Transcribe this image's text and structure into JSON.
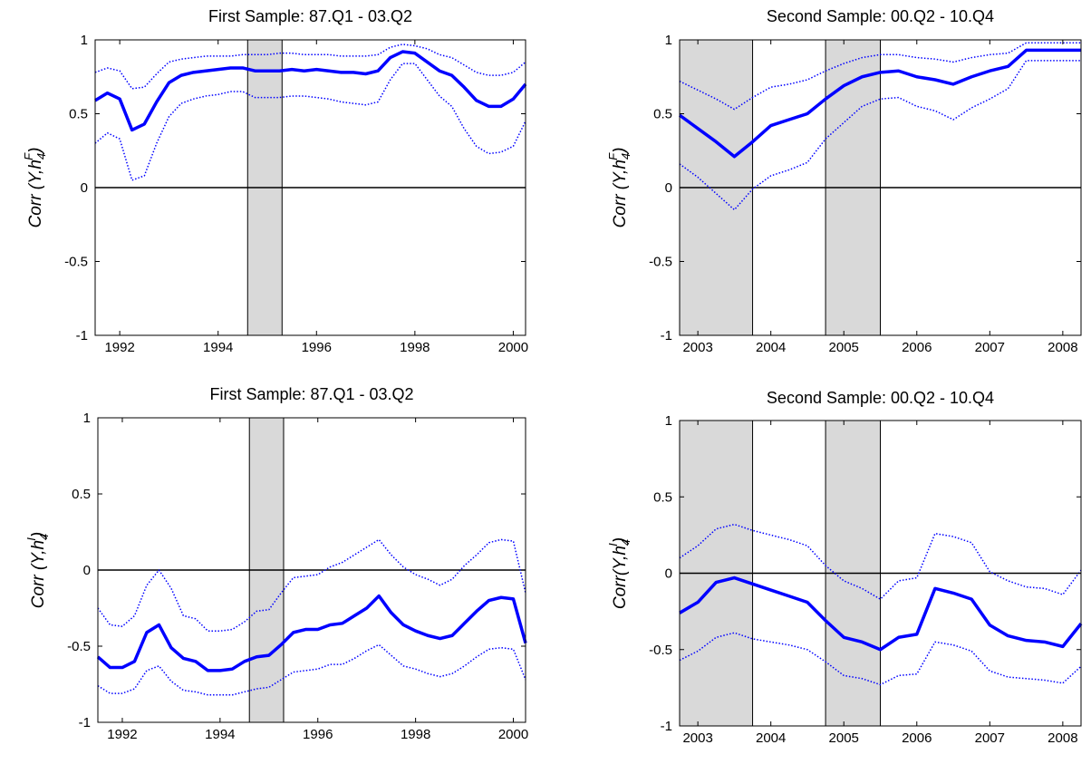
{
  "chart_data": [
    {
      "type": "line",
      "title": "First Sample: 87.Q1 - 03.Q2",
      "ylabel": [
        "Corr (Y,h",
        "4",
        "F",
        ")"
      ],
      "x": [
        1991.5,
        1991.75,
        1992,
        1992.25,
        1992.5,
        1992.75,
        1993,
        1993.25,
        1993.5,
        1993.75,
        1994,
        1994.25,
        1994.5,
        1994.75,
        1995,
        1995.25,
        1995.5,
        1995.75,
        1996,
        1996.25,
        1996.5,
        1996.75,
        1997,
        1997.25,
        1997.5,
        1997.75,
        1998,
        1998.25,
        1998.5,
        1998.75,
        1999,
        1999.25,
        1999.5,
        1999.75,
        2000,
        2000.25
      ],
      "series": [
        {
          "color": "#0000ff",
          "style": "solid",
          "values": [
            0.59,
            0.64,
            0.6,
            0.39,
            0.43,
            0.58,
            0.71,
            0.76,
            0.78,
            0.79,
            0.8,
            0.81,
            0.81,
            0.79,
            0.79,
            0.79,
            0.8,
            0.79,
            0.8,
            0.79,
            0.78,
            0.78,
            0.77,
            0.79,
            0.88,
            0.92,
            0.91,
            0.85,
            0.79,
            0.76,
            0.68,
            0.59,
            0.55,
            0.55,
            0.6,
            0.7
          ]
        },
        {
          "color": "#0000ff",
          "style": "dotted",
          "values": [
            0.78,
            0.81,
            0.79,
            0.67,
            0.68,
            0.77,
            0.85,
            0.87,
            0.88,
            0.89,
            0.89,
            0.89,
            0.9,
            0.9,
            0.9,
            0.91,
            0.91,
            0.9,
            0.9,
            0.9,
            0.89,
            0.89,
            0.89,
            0.9,
            0.95,
            0.97,
            0.96,
            0.94,
            0.9,
            0.88,
            0.83,
            0.78,
            0.76,
            0.76,
            0.78,
            0.85
          ]
        },
        {
          "color": "#0000ff",
          "style": "dotted",
          "values": [
            0.3,
            0.37,
            0.33,
            0.05,
            0.08,
            0.3,
            0.48,
            0.57,
            0.6,
            0.62,
            0.63,
            0.65,
            0.65,
            0.61,
            0.61,
            0.61,
            0.62,
            0.62,
            0.61,
            0.6,
            0.58,
            0.57,
            0.56,
            0.58,
            0.73,
            0.84,
            0.84,
            0.73,
            0.62,
            0.55,
            0.4,
            0.28,
            0.23,
            0.24,
            0.28,
            0.45
          ]
        }
      ],
      "shaded": [
        [
          1994.6,
          1995.3
        ]
      ],
      "reference_line": 0,
      "xlim": [
        1991.5,
        2000.25
      ],
      "xticks": [
        1992,
        1994,
        1996,
        1998,
        2000
      ],
      "ylim": [
        -1,
        1
      ],
      "yticks": [
        -1,
        -0.5,
        0,
        0.5,
        1
      ]
    },
    {
      "type": "line",
      "title": "Second Sample: 00.Q2 - 10.Q4",
      "ylabel": [
        "Corr (Y,h",
        "4",
        "F",
        ")"
      ],
      "x": [
        2002.75,
        2003,
        2003.25,
        2003.5,
        2003.75,
        2004,
        2004.25,
        2004.5,
        2004.75,
        2005,
        2005.25,
        2005.5,
        2005.75,
        2006,
        2006.25,
        2006.5,
        2006.75,
        2007,
        2007.25,
        2007.5,
        2007.75,
        2008,
        2008.25
      ],
      "series": [
        {
          "color": "#0000ff",
          "style": "solid",
          "values": [
            0.49,
            0.4,
            0.31,
            0.21,
            0.31,
            0.42,
            0.46,
            0.5,
            0.6,
            0.69,
            0.75,
            0.78,
            0.79,
            0.75,
            0.73,
            0.7,
            0.75,
            0.79,
            0.82,
            0.93,
            0.93,
            0.93,
            0.93
          ]
        },
        {
          "color": "#0000ff",
          "style": "dotted",
          "values": [
            0.72,
            0.66,
            0.6,
            0.53,
            0.61,
            0.68,
            0.7,
            0.73,
            0.79,
            0.84,
            0.88,
            0.9,
            0.9,
            0.88,
            0.87,
            0.85,
            0.88,
            0.9,
            0.91,
            0.98,
            0.98,
            0.98,
            0.98
          ]
        },
        {
          "color": "#0000ff",
          "style": "dotted",
          "values": [
            0.16,
            0.07,
            -0.04,
            -0.15,
            -0.01,
            0.08,
            0.12,
            0.17,
            0.33,
            0.44,
            0.55,
            0.6,
            0.61,
            0.55,
            0.52,
            0.46,
            0.54,
            0.6,
            0.67,
            0.86,
            0.86,
            0.86,
            0.86
          ]
        }
      ],
      "shaded": [
        [
          2002.75,
          2003.75
        ],
        [
          2004.75,
          2005.5
        ]
      ],
      "reference_line": 0,
      "xlim": [
        2002.75,
        2008.25
      ],
      "xticks": [
        2003,
        2004,
        2005,
        2006,
        2007,
        2008
      ],
      "ylim": [
        -1,
        1
      ],
      "yticks": [
        -1,
        -0.5,
        0,
        0.5,
        1
      ]
    },
    {
      "type": "line",
      "title": "First Sample: 87.Q1 - 03.Q2",
      "ylabel": [
        "Corr (Y,h",
        "4",
        "I",
        ")"
      ],
      "x": [
        1991.5,
        1991.75,
        1992,
        1992.25,
        1992.5,
        1992.75,
        1993,
        1993.25,
        1993.5,
        1993.75,
        1994,
        1994.25,
        1994.5,
        1994.75,
        1995,
        1995.25,
        1995.5,
        1995.75,
        1996,
        1996.25,
        1996.5,
        1996.75,
        1997,
        1997.25,
        1997.5,
        1997.75,
        1998,
        1998.25,
        1998.5,
        1998.75,
        1999,
        1999.25,
        1999.5,
        1999.75,
        2000,
        2000.25
      ],
      "series": [
        {
          "color": "#0000ff",
          "style": "solid",
          "values": [
            -0.57,
            -0.64,
            -0.64,
            -0.6,
            -0.41,
            -0.36,
            -0.51,
            -0.58,
            -0.6,
            -0.66,
            -0.66,
            -0.65,
            -0.6,
            -0.57,
            -0.56,
            -0.49,
            -0.41,
            -0.39,
            -0.39,
            -0.36,
            -0.35,
            -0.3,
            -0.25,
            -0.17,
            -0.28,
            -0.36,
            -0.4,
            -0.43,
            -0.45,
            -0.43,
            -0.35,
            -0.27,
            -0.2,
            -0.18,
            -0.19,
            -0.48
          ]
        },
        {
          "color": "#0000ff",
          "style": "dotted",
          "values": [
            -0.25,
            -0.36,
            -0.37,
            -0.3,
            -0.1,
            0,
            -0.12,
            -0.3,
            -0.32,
            -0.4,
            -0.4,
            -0.39,
            -0.34,
            -0.27,
            -0.26,
            -0.15,
            -0.05,
            -0.04,
            -0.03,
            0.02,
            0.05,
            0.1,
            0.15,
            0.2,
            0.1,
            0.02,
            -0.03,
            -0.06,
            -0.1,
            -0.06,
            0.03,
            0.1,
            0.18,
            0.2,
            0.19,
            -0.15
          ]
        },
        {
          "color": "#0000ff",
          "style": "dotted",
          "values": [
            -0.76,
            -0.81,
            -0.81,
            -0.78,
            -0.66,
            -0.63,
            -0.73,
            -0.79,
            -0.8,
            -0.82,
            -0.82,
            -0.82,
            -0.8,
            -0.78,
            -0.77,
            -0.72,
            -0.67,
            -0.66,
            -0.65,
            -0.62,
            -0.62,
            -0.58,
            -0.53,
            -0.49,
            -0.56,
            -0.63,
            -0.65,
            -0.68,
            -0.7,
            -0.68,
            -0.63,
            -0.57,
            -0.52,
            -0.51,
            -0.52,
            -0.72
          ]
        }
      ],
      "shaded": [
        [
          1994.6,
          1995.3
        ]
      ],
      "reference_line": 0,
      "xlim": [
        1991.5,
        2000.25
      ],
      "xticks": [
        1992,
        1994,
        1996,
        1998,
        2000
      ],
      "ylim": [
        -1,
        1
      ],
      "yticks": [
        -1,
        -0.5,
        0,
        0.5,
        1
      ]
    },
    {
      "type": "line",
      "title": "Second Sample: 00.Q2 - 10.Q4",
      "ylabel": [
        "Corr(Y,h",
        "4",
        "I",
        ")"
      ],
      "x": [
        2002.75,
        2003,
        2003.25,
        2003.5,
        2003.75,
        2004,
        2004.25,
        2004.5,
        2004.75,
        2005,
        2005.25,
        2005.5,
        2005.75,
        2006,
        2006.25,
        2006.5,
        2006.75,
        2007,
        2007.25,
        2007.5,
        2007.75,
        2008,
        2008.25
      ],
      "series": [
        {
          "color": "#0000ff",
          "style": "solid",
          "values": [
            -0.26,
            -0.19,
            -0.06,
            -0.03,
            -0.07,
            -0.11,
            -0.15,
            -0.19,
            -0.31,
            -0.42,
            -0.45,
            -0.5,
            -0.42,
            -0.4,
            -0.1,
            -0.13,
            -0.17,
            -0.34,
            -0.41,
            -0.44,
            -0.45,
            -0.48,
            -0.33
          ]
        },
        {
          "color": "#0000ff",
          "style": "dotted",
          "values": [
            0.1,
            0.18,
            0.29,
            0.32,
            0.28,
            0.25,
            0.22,
            0.18,
            0.05,
            -0.05,
            -0.1,
            -0.17,
            -0.05,
            -0.03,
            0.26,
            0.24,
            0.2,
            0.01,
            -0.05,
            -0.09,
            -0.1,
            -0.14,
            0.02
          ]
        },
        {
          "color": "#0000ff",
          "style": "dotted",
          "values": [
            -0.57,
            -0.51,
            -0.42,
            -0.39,
            -0.43,
            -0.45,
            -0.47,
            -0.5,
            -0.58,
            -0.67,
            -0.69,
            -0.73,
            -0.67,
            -0.66,
            -0.45,
            -0.47,
            -0.51,
            -0.64,
            -0.68,
            -0.69,
            -0.7,
            -0.72,
            -0.61
          ]
        }
      ],
      "shaded": [
        [
          2002.75,
          2003.75
        ],
        [
          2004.75,
          2005.5
        ]
      ],
      "reference_line": 0,
      "xlim": [
        2002.75,
        2008.25
      ],
      "xticks": [
        2003,
        2004,
        2005,
        2006,
        2007,
        2008
      ],
      "ylim": [
        -1,
        1
      ],
      "yticks": [
        -1,
        -0.5,
        0,
        0.5,
        1
      ]
    }
  ]
}
